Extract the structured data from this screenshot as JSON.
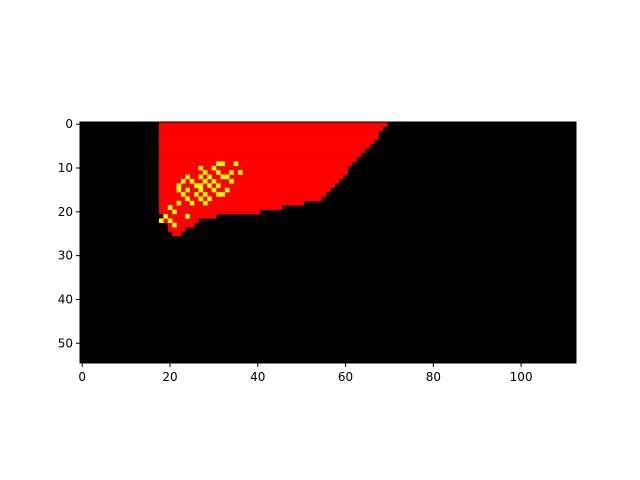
{
  "chart_data": {
    "type": "heatmap",
    "title": "",
    "xlabel": "",
    "ylabel": "",
    "xlim": [
      -0.5,
      112.5
    ],
    "ylim": [
      54.5,
      -0.5
    ],
    "grid": false,
    "legend": "none",
    "x_ticks": [
      0,
      20,
      40,
      60,
      80,
      100
    ],
    "y_ticks": [
      0,
      10,
      20,
      30,
      40,
      50
    ],
    "grid_size": {
      "cols": 113,
      "rows": 55
    },
    "colors": {
      "background": "#000000",
      "fill": "#ff0000",
      "hotspot": "#ffff00"
    },
    "red_region_rows": [
      [
        18,
        69
      ],
      [
        18,
        68
      ],
      [
        18,
        67
      ],
      [
        18,
        67
      ],
      [
        18,
        66
      ],
      [
        18,
        65
      ],
      [
        18,
        64
      ],
      [
        18,
        63
      ],
      [
        18,
        62
      ],
      [
        18,
        61
      ],
      [
        18,
        60
      ],
      [
        18,
        60
      ],
      [
        18,
        59
      ],
      [
        18,
        58
      ],
      [
        18,
        57
      ],
      [
        18,
        56
      ],
      [
        18,
        55
      ],
      [
        18,
        54
      ],
      [
        18,
        50
      ],
      [
        18,
        45
      ],
      [
        18,
        40
      ],
      [
        19,
        30
      ],
      [
        19,
        26
      ],
      [
        20,
        25
      ],
      [
        20,
        23
      ],
      [
        21,
        22
      ]
    ],
    "yellow_cells": [
      [
        31,
        9
      ],
      [
        32,
        9
      ],
      [
        35,
        9
      ],
      [
        27,
        10
      ],
      [
        30,
        10
      ],
      [
        28,
        11
      ],
      [
        31,
        11
      ],
      [
        34,
        11
      ],
      [
        36,
        11
      ],
      [
        24,
        12
      ],
      [
        27,
        12
      ],
      [
        29,
        12
      ],
      [
        32,
        12
      ],
      [
        33,
        12
      ],
      [
        23,
        13
      ],
      [
        25,
        13
      ],
      [
        28,
        13
      ],
      [
        30,
        13
      ],
      [
        34,
        13
      ],
      [
        22,
        14
      ],
      [
        26,
        14
      ],
      [
        27,
        14
      ],
      [
        29,
        14
      ],
      [
        31,
        14
      ],
      [
        22,
        15
      ],
      [
        24,
        15
      ],
      [
        27,
        15
      ],
      [
        30,
        15
      ],
      [
        33,
        15
      ],
      [
        23,
        16
      ],
      [
        26,
        16
      ],
      [
        28,
        16
      ],
      [
        31,
        16
      ],
      [
        32,
        16
      ],
      [
        24,
        17
      ],
      [
        27,
        17
      ],
      [
        29,
        17
      ],
      [
        22,
        18
      ],
      [
        25,
        18
      ],
      [
        28,
        18
      ],
      [
        20,
        19
      ],
      [
        21,
        20
      ],
      [
        19,
        21
      ],
      [
        24,
        21
      ],
      [
        18,
        22
      ],
      [
        20,
        22
      ],
      [
        21,
        23
      ]
    ]
  }
}
